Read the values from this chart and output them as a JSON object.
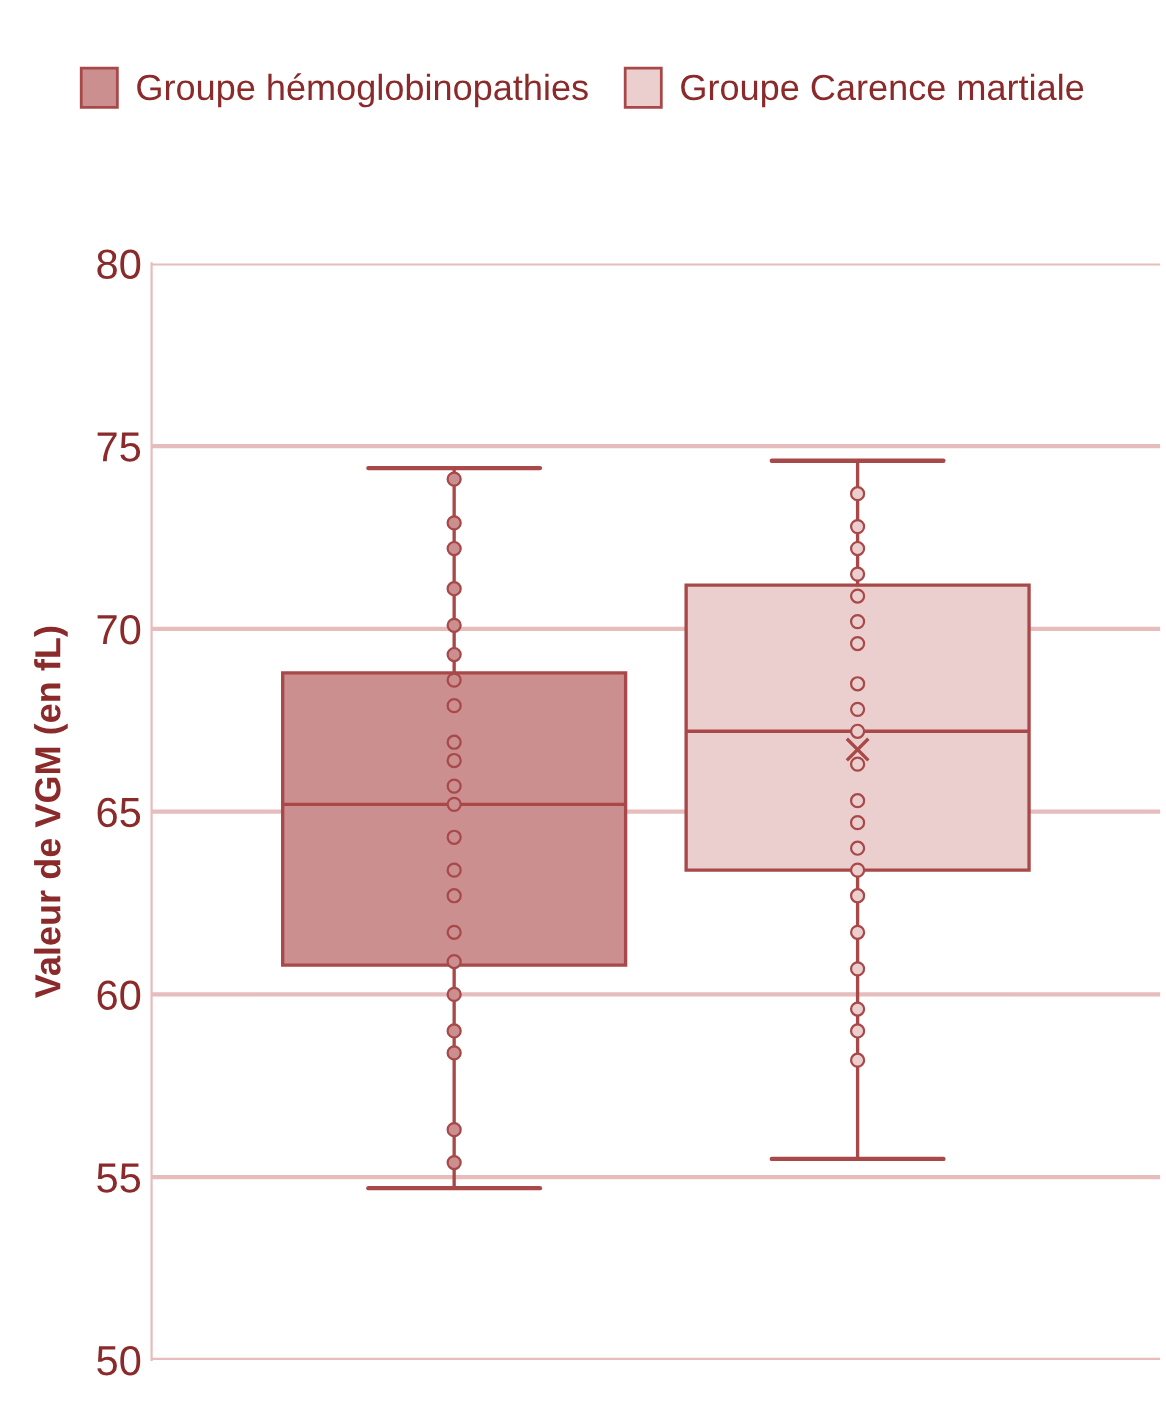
{
  "chart_data": {
    "type": "box",
    "ylabel": "Valeur de VGM (en fL)",
    "categories": [
      null
    ],
    "ylim": [
      50,
      80
    ],
    "yticks": [
      50,
      55,
      60,
      65,
      70,
      75,
      80
    ],
    "grid": "y",
    "legend": "top",
    "series": [
      {
        "name": "Groupe hémoglobinopathies",
        "color": "#cc8f8f",
        "boxes": [
          {
            "low": 54.7,
            "q1": 60.8,
            "median": 65.2,
            "q3": 68.8,
            "high": 74.4,
            "outliers": [
              74.1,
              72.9,
              72.2,
              71.1,
              70.1,
              69.3,
              68.6,
              67.9,
              66.9,
              66.4,
              65.7,
              65.2,
              64.3,
              63.4,
              62.7,
              61.7,
              60.9,
              60.0,
              59.0,
              58.4,
              56.3,
              55.4
            ]
          }
        ]
      },
      {
        "name": "Groupe Carence martiale",
        "color": "#ebcfcf",
        "boxes": [
          {
            "low": 55.5,
            "q1": 63.4,
            "median": 67.2,
            "q3": 71.2,
            "high": 74.6,
            "mean": 66.7,
            "outliers": [
              73.7,
              72.8,
              72.2,
              71.5,
              70.9,
              70.2,
              69.6,
              68.5,
              67.8,
              67.2,
              66.3,
              65.3,
              64.7,
              64.0,
              63.4,
              62.7,
              61.7,
              60.7,
              59.6,
              59.0,
              58.2
            ]
          }
        ]
      }
    ]
  }
}
